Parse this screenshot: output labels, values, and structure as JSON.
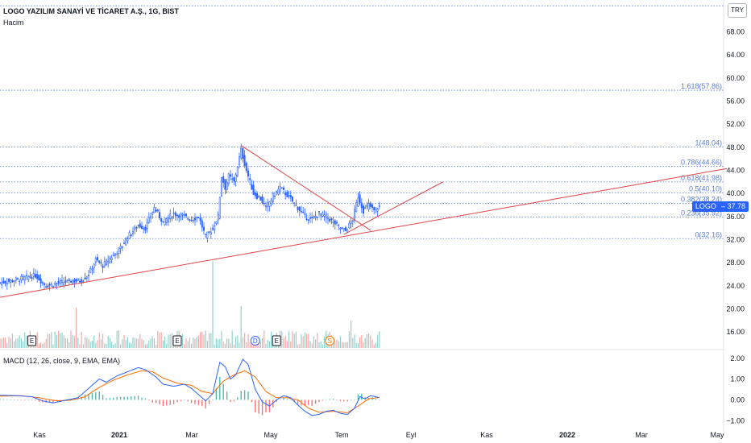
{
  "header": {
    "title": "LOGO YAZILIM SANAYİ VE TİCARET A.Ş., 1G, BIST",
    "volume_label": "Hacim",
    "currency_button": "TRY"
  },
  "macd_label": "MACD (12, 26, close, 9, EMA, EMA)",
  "price_tag": {
    "symbol": "LOGO",
    "value": "37.78"
  },
  "colors": {
    "up": "#26a69a",
    "down": "#ef5350",
    "candle": "#2962ff",
    "trendline": "#e04545",
    "fib": "#5b7bd5",
    "macd": "#2962ff",
    "signal": "#ff6d00"
  },
  "chart_data": [
    {
      "type": "candlestick",
      "title": "LOGO YAZILIM SANAYİ VE TİCARET A.Ş., 1G, BIST",
      "currency": "TRY",
      "x_ticks": [
        "Kas",
        "2021",
        "Mar",
        "May",
        "Tem",
        "Eyl",
        "Kas",
        "2022",
        "Mar",
        "May"
      ],
      "y_ticks": [
        16,
        20,
        24,
        28,
        32,
        36,
        40,
        44,
        48,
        52,
        56,
        60,
        64,
        68
      ],
      "y_tick_labels": [
        "16.00",
        "20.00",
        "24.00",
        "28.00",
        "32.00",
        "36.00",
        "40.00",
        "44.00",
        "48.00",
        "52.00",
        "56.00",
        "60.00",
        "64.00",
        "68.00"
      ],
      "ylim": [
        13.5,
        73.5
      ],
      "last_price": 37.78,
      "close_path": [
        {
          "t": 0,
          "v": 24.5
        },
        {
          "t": 12,
          "v": 25.2
        },
        {
          "t": 20,
          "v": 25.8
        },
        {
          "t": 26,
          "v": 24.0
        },
        {
          "t": 32,
          "v": 24.4
        },
        {
          "t": 40,
          "v": 24.8
        },
        {
          "t": 46,
          "v": 24.9
        },
        {
          "t": 50,
          "v": 26.0
        },
        {
          "t": 54,
          "v": 28.5
        },
        {
          "t": 58,
          "v": 27.5
        },
        {
          "t": 63,
          "v": 29.0
        },
        {
          "t": 68,
          "v": 30.5
        },
        {
          "t": 72,
          "v": 32.5
        },
        {
          "t": 78,
          "v": 34.5
        },
        {
          "t": 82,
          "v": 34.0
        },
        {
          "t": 87,
          "v": 37.5
        },
        {
          "t": 92,
          "v": 35.0
        },
        {
          "t": 98,
          "v": 36.5
        },
        {
          "t": 104,
          "v": 36.0
        },
        {
          "t": 108,
          "v": 35.5
        },
        {
          "t": 112,
          "v": 36.0
        },
        {
          "t": 116,
          "v": 32.5
        },
        {
          "t": 120,
          "v": 34.0
        },
        {
          "t": 123,
          "v": 36.0
        },
        {
          "t": 125,
          "v": 43.0
        },
        {
          "t": 127,
          "v": 41.0
        },
        {
          "t": 129,
          "v": 43.0
        },
        {
          "t": 132,
          "v": 42.0
        },
        {
          "t": 136,
          "v": 47.5
        },
        {
          "t": 139,
          "v": 44.0
        },
        {
          "t": 143,
          "v": 40.0
        },
        {
          "t": 147,
          "v": 39.0
        },
        {
          "t": 150,
          "v": 37.5
        },
        {
          "t": 154,
          "v": 39.5
        },
        {
          "t": 158,
          "v": 41.0
        },
        {
          "t": 161,
          "v": 40.0
        },
        {
          "t": 164,
          "v": 39.0
        },
        {
          "t": 168,
          "v": 37.5
        },
        {
          "t": 172,
          "v": 36.0
        },
        {
          "t": 176,
          "v": 35.5
        },
        {
          "t": 180,
          "v": 36.5
        },
        {
          "t": 184,
          "v": 36.0
        },
        {
          "t": 188,
          "v": 35.0
        },
        {
          "t": 192,
          "v": 34.0
        },
        {
          "t": 195,
          "v": 33.5
        },
        {
          "t": 199,
          "v": 35.5
        },
        {
          "t": 202,
          "v": 39.5
        },
        {
          "t": 205,
          "v": 37.0
        },
        {
          "t": 208,
          "v": 38.0
        },
        {
          "t": 211,
          "v": 37.0
        },
        {
          "t": 214,
          "v": 37.78
        }
      ],
      "bars_extent": {
        "t_start": 0,
        "t_end": 214
      },
      "fibonacci": [
        {
          "label": "1.618(57.86)",
          "value": 57.86
        },
        {
          "label": "1(48.04)",
          "value": 48.04
        },
        {
          "label": "0.786(44.66)",
          "value": 44.66
        },
        {
          "label": "0.618(41.98)",
          "value": 41.98
        },
        {
          "label": "0.5(40.10)",
          "value": 40.1
        },
        {
          "label": "0.382(38.24)",
          "value": 38.24
        },
        {
          "label": "0.236(35.92)",
          "value": 35.92
        },
        {
          "label": "0(32.16)",
          "value": 32.16
        }
      ],
      "fib_top_cut": 72.5,
      "trendlines": [
        {
          "from": {
            "t": 0,
            "v": 22.0
          },
          "to": {
            "t": 410,
            "v": 44.3
          }
        },
        {
          "from": {
            "t": 136,
            "v": 48.3
          },
          "to": {
            "t": 209,
            "v": 33.6
          }
        },
        {
          "from": {
            "t": 194,
            "v": 32.9
          },
          "to": {
            "t": 250,
            "v": 42.0
          }
        }
      ],
      "events": [
        {
          "label": "E",
          "t": 18,
          "color": "#131722"
        },
        {
          "label": "E",
          "t": 100,
          "color": "#131722"
        },
        {
          "label": "D",
          "t": 144,
          "color": "#2962ff"
        },
        {
          "label": "E",
          "t": 156,
          "color": "#131722"
        },
        {
          "label": "S",
          "t": 186,
          "color": "#ff6d00"
        }
      ]
    },
    {
      "type": "line",
      "title": "MACD (12, 26, close, 9, EMA, EMA)",
      "y_ticks": [
        -1,
        0,
        1,
        2
      ],
      "y_tick_labels": [
        "−1.00",
        "0.00",
        "1.00",
        "2.00"
      ],
      "ylim": [
        -1.3,
        2.3
      ],
      "series": [
        {
          "name": "MACD",
          "values": [
            {
              "t": 0,
              "v": 0.22
            },
            {
              "t": 10,
              "v": 0.2
            },
            {
              "t": 18,
              "v": 0.15
            },
            {
              "t": 24,
              "v": -0.05
            },
            {
              "t": 30,
              "v": -0.15
            },
            {
              "t": 38,
              "v": 0.0
            },
            {
              "t": 44,
              "v": 0.1
            },
            {
              "t": 50,
              "v": 0.55
            },
            {
              "t": 56,
              "v": 1.0
            },
            {
              "t": 60,
              "v": 0.85
            },
            {
              "t": 66,
              "v": 1.15
            },
            {
              "t": 72,
              "v": 1.35
            },
            {
              "t": 78,
              "v": 1.55
            },
            {
              "t": 82,
              "v": 1.45
            },
            {
              "t": 88,
              "v": 1.1
            },
            {
              "t": 92,
              "v": 0.75
            },
            {
              "t": 98,
              "v": 0.65
            },
            {
              "t": 104,
              "v": 0.75
            },
            {
              "t": 108,
              "v": 0.55
            },
            {
              "t": 112,
              "v": 0.25
            },
            {
              "t": 116,
              "v": -0.05
            },
            {
              "t": 120,
              "v": 0.3
            },
            {
              "t": 124,
              "v": 1.8
            },
            {
              "t": 127,
              "v": 1.6
            },
            {
              "t": 130,
              "v": 1.0
            },
            {
              "t": 133,
              "v": 1.2
            },
            {
              "t": 137,
              "v": 1.95
            },
            {
              "t": 140,
              "v": 1.7
            },
            {
              "t": 144,
              "v": 0.5
            },
            {
              "t": 148,
              "v": -0.1
            },
            {
              "t": 152,
              "v": -0.3
            },
            {
              "t": 156,
              "v": 0.0
            },
            {
              "t": 160,
              "v": 0.2
            },
            {
              "t": 164,
              "v": 0.1
            },
            {
              "t": 168,
              "v": -0.25
            },
            {
              "t": 172,
              "v": -0.55
            },
            {
              "t": 176,
              "v": -0.75
            },
            {
              "t": 180,
              "v": -0.7
            },
            {
              "t": 184,
              "v": -0.55
            },
            {
              "t": 188,
              "v": -0.5
            },
            {
              "t": 192,
              "v": -0.65
            },
            {
              "t": 196,
              "v": -0.7
            },
            {
              "t": 200,
              "v": -0.4
            },
            {
              "t": 203,
              "v": 0.15
            },
            {
              "t": 206,
              "v": 0.05
            },
            {
              "t": 209,
              "v": 0.2
            },
            {
              "t": 212,
              "v": 0.15
            },
            {
              "t": 214,
              "v": 0.1
            }
          ]
        },
        {
          "name": "Signal",
          "values": [
            {
              "t": 0,
              "v": 0.18
            },
            {
              "t": 12,
              "v": 0.2
            },
            {
              "t": 22,
              "v": 0.1
            },
            {
              "t": 32,
              "v": -0.05
            },
            {
              "t": 40,
              "v": -0.02
            },
            {
              "t": 48,
              "v": 0.15
            },
            {
              "t": 56,
              "v": 0.6
            },
            {
              "t": 64,
              "v": 0.95
            },
            {
              "t": 72,
              "v": 1.2
            },
            {
              "t": 80,
              "v": 1.4
            },
            {
              "t": 86,
              "v": 1.35
            },
            {
              "t": 92,
              "v": 1.05
            },
            {
              "t": 100,
              "v": 0.8
            },
            {
              "t": 108,
              "v": 0.7
            },
            {
              "t": 114,
              "v": 0.4
            },
            {
              "t": 120,
              "v": 0.3
            },
            {
              "t": 126,
              "v": 0.9
            },
            {
              "t": 132,
              "v": 1.2
            },
            {
              "t": 138,
              "v": 1.4
            },
            {
              "t": 144,
              "v": 1.1
            },
            {
              "t": 150,
              "v": 0.4
            },
            {
              "t": 156,
              "v": 0.1
            },
            {
              "t": 162,
              "v": 0.1
            },
            {
              "t": 168,
              "v": 0.0
            },
            {
              "t": 174,
              "v": -0.4
            },
            {
              "t": 180,
              "v": -0.6
            },
            {
              "t": 188,
              "v": -0.55
            },
            {
              "t": 196,
              "v": -0.62
            },
            {
              "t": 202,
              "v": -0.3
            },
            {
              "t": 208,
              "v": 0.05
            },
            {
              "t": 214,
              "v": 0.12
            }
          ]
        }
      ]
    }
  ]
}
